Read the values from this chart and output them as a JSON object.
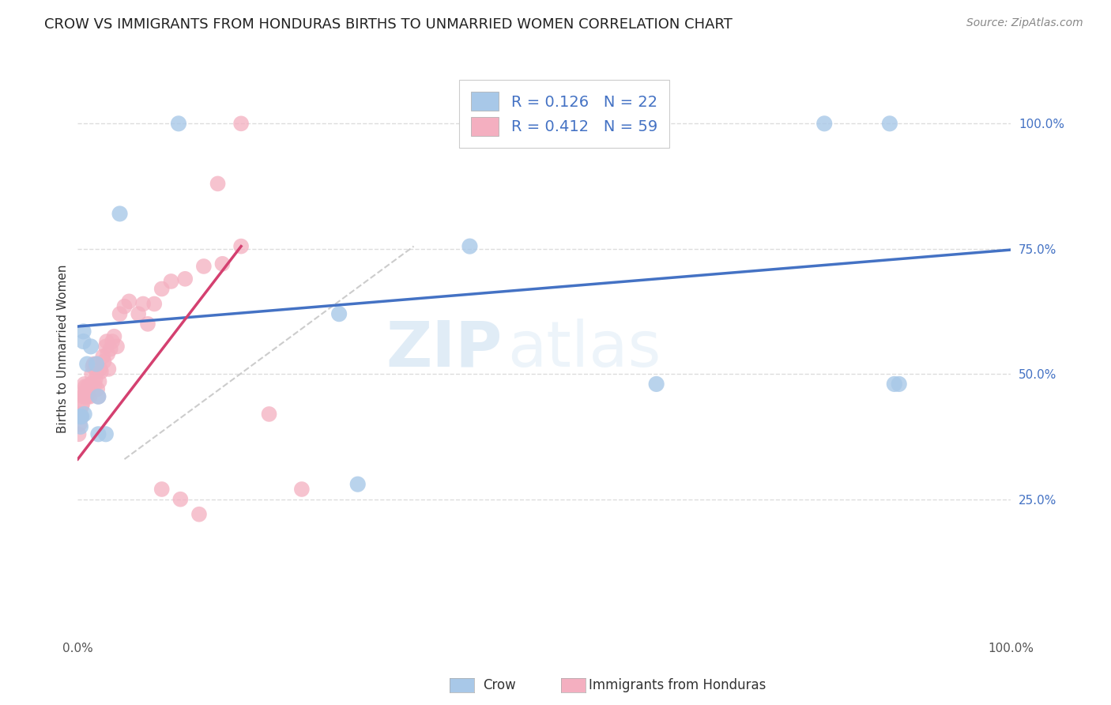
{
  "title": "CROW VS IMMIGRANTS FROM HONDURAS BIRTHS TO UNMARRIED WOMEN CORRELATION CHART",
  "source": "Source: ZipAtlas.com",
  "ylabel": "Births to Unmarried Women",
  "xlim": [
    0.0,
    1.0
  ],
  "ylim": [
    -0.02,
    1.12
  ],
  "ytick_values": [
    0.25,
    0.5,
    0.75,
    1.0
  ],
  "ytick_labels": [
    "25.0%",
    "50.0%",
    "75.0%",
    "100.0%"
  ],
  "legend_label1": "Crow",
  "legend_label2": "Immigrants from Honduras",
  "R1": 0.126,
  "N1": 22,
  "R2": 0.412,
  "N2": 59,
  "blue_color": "#a8c8e8",
  "pink_color": "#f4afc0",
  "blue_line_color": "#4472c4",
  "pink_line_color": "#d44070",
  "watermark_zip": "ZIP",
  "watermark_atlas": "atlas",
  "blue_line_x": [
    0.0,
    1.0
  ],
  "blue_line_y": [
    0.595,
    0.748
  ],
  "pink_line_x": [
    0.0,
    0.175
  ],
  "pink_line_y": [
    0.33,
    0.755
  ],
  "diag_line_x": [
    0.05,
    0.36
  ],
  "diag_line_y": [
    0.33,
    0.755
  ],
  "blue_points_x": [
    0.003,
    0.003,
    0.004,
    0.006,
    0.006,
    0.007,
    0.01,
    0.014,
    0.02,
    0.022,
    0.022,
    0.03,
    0.045,
    0.108,
    0.8,
    0.87,
    0.875,
    0.88,
    0.3,
    0.62,
    0.42,
    0.28
  ],
  "blue_points_y": [
    0.415,
    0.395,
    0.415,
    0.585,
    0.565,
    0.42,
    0.52,
    0.555,
    0.52,
    0.455,
    0.38,
    0.38,
    0.82,
    1.0,
    1.0,
    1.0,
    0.48,
    0.48,
    0.28,
    0.48,
    0.755,
    0.62
  ],
  "pink_points_x": [
    0.001,
    0.002,
    0.003,
    0.004,
    0.004,
    0.005,
    0.005,
    0.006,
    0.007,
    0.007,
    0.008,
    0.009,
    0.01,
    0.011,
    0.012,
    0.013,
    0.014,
    0.015,
    0.016,
    0.017,
    0.018,
    0.019,
    0.02,
    0.02,
    0.021,
    0.022,
    0.023,
    0.024,
    0.025,
    0.027,
    0.028,
    0.03,
    0.031,
    0.032,
    0.033,
    0.035,
    0.037,
    0.039,
    0.042,
    0.045,
    0.05,
    0.055,
    0.065,
    0.07,
    0.075,
    0.082,
    0.09,
    0.1,
    0.115,
    0.135,
    0.155,
    0.175,
    0.205,
    0.24,
    0.09,
    0.11,
    0.13,
    0.15,
    0.175
  ],
  "pink_points_y": [
    0.38,
    0.4,
    0.42,
    0.415,
    0.435,
    0.44,
    0.46,
    0.455,
    0.46,
    0.48,
    0.475,
    0.455,
    0.475,
    0.455,
    0.475,
    0.455,
    0.48,
    0.5,
    0.515,
    0.52,
    0.48,
    0.49,
    0.52,
    0.505,
    0.47,
    0.455,
    0.485,
    0.51,
    0.505,
    0.535,
    0.525,
    0.555,
    0.565,
    0.54,
    0.51,
    0.55,
    0.565,
    0.575,
    0.555,
    0.62,
    0.635,
    0.645,
    0.62,
    0.64,
    0.6,
    0.64,
    0.67,
    0.685,
    0.69,
    0.715,
    0.72,
    0.755,
    0.42,
    0.27,
    0.27,
    0.25,
    0.22,
    0.88,
    1.0
  ]
}
